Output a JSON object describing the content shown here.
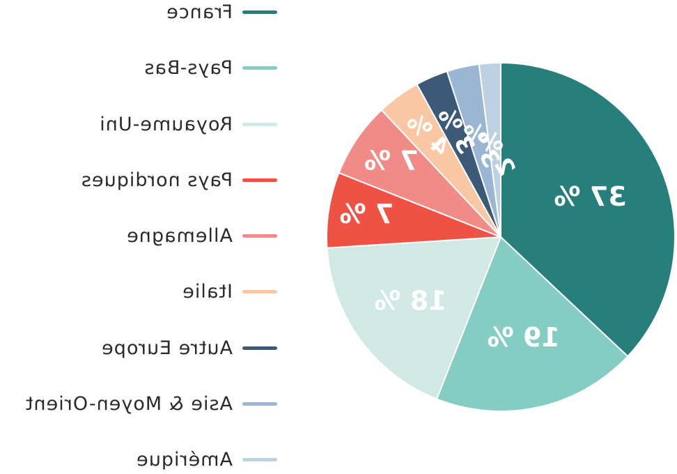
{
  "chart_data": {
    "type": "pie",
    "title": "",
    "legend_position": "left",
    "categories": [
      "France",
      "Pays-Bas",
      "Royaume-Uni",
      "Pays nordiques",
      "Allemagne",
      "Italie",
      "Autre Europe",
      "Asie & Moyen-Orient",
      "Amérique"
    ],
    "values": [
      37,
      19,
      18,
      7,
      7,
      4,
      3,
      3,
      2
    ],
    "labels": [
      "37 %",
      "19 %",
      "18 %",
      "7 %",
      "7 %",
      "4 %",
      "3 %",
      "3 %",
      "2 %"
    ],
    "colors": [
      "#277f7c",
      "#85cdc2",
      "#d0e9e5",
      "#ee5245",
      "#f18b88",
      "#f9c7a3",
      "#3c5a78",
      "#9ab6d2",
      "#bdd1e3"
    ]
  }
}
